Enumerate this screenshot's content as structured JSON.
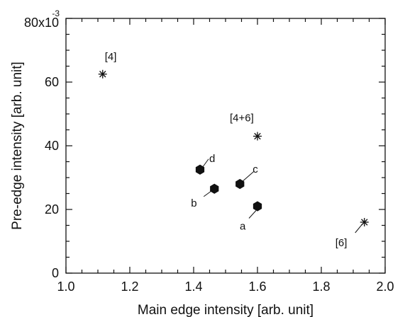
{
  "chart_data": {
    "type": "scatter",
    "xlabel": "Main edge intensity [arb. unit]",
    "ylabel": "Pre-edge intensity [arb. unit]",
    "xlim": [
      1.0,
      2.0
    ],
    "ylim": [
      0,
      80
    ],
    "x_ticks": [
      "1.0",
      "1.2",
      "1.4",
      "1.6",
      "1.8",
      "2.0"
    ],
    "y_ticks": [
      "0",
      "20",
      "40",
      "60",
      "80x10"
    ],
    "y_exponent": "-3",
    "grid": false,
    "series": [
      {
        "marker": "asterisk",
        "points": [
          {
            "x": 1.115,
            "y": 62.5,
            "label": "[4]"
          },
          {
            "x": 1.6,
            "y": 43.0,
            "label": "[4+6]"
          },
          {
            "x": 1.935,
            "y": 16.0,
            "label": "[6]"
          }
        ]
      },
      {
        "marker": "hexagon-filled",
        "points": [
          {
            "x": 1.6,
            "y": 21.0,
            "label": "a"
          },
          {
            "x": 1.465,
            "y": 26.5,
            "label": "b"
          },
          {
            "x": 1.545,
            "y": 28.0,
            "label": "c"
          },
          {
            "x": 1.42,
            "y": 32.5,
            "label": "d"
          }
        ]
      }
    ]
  }
}
